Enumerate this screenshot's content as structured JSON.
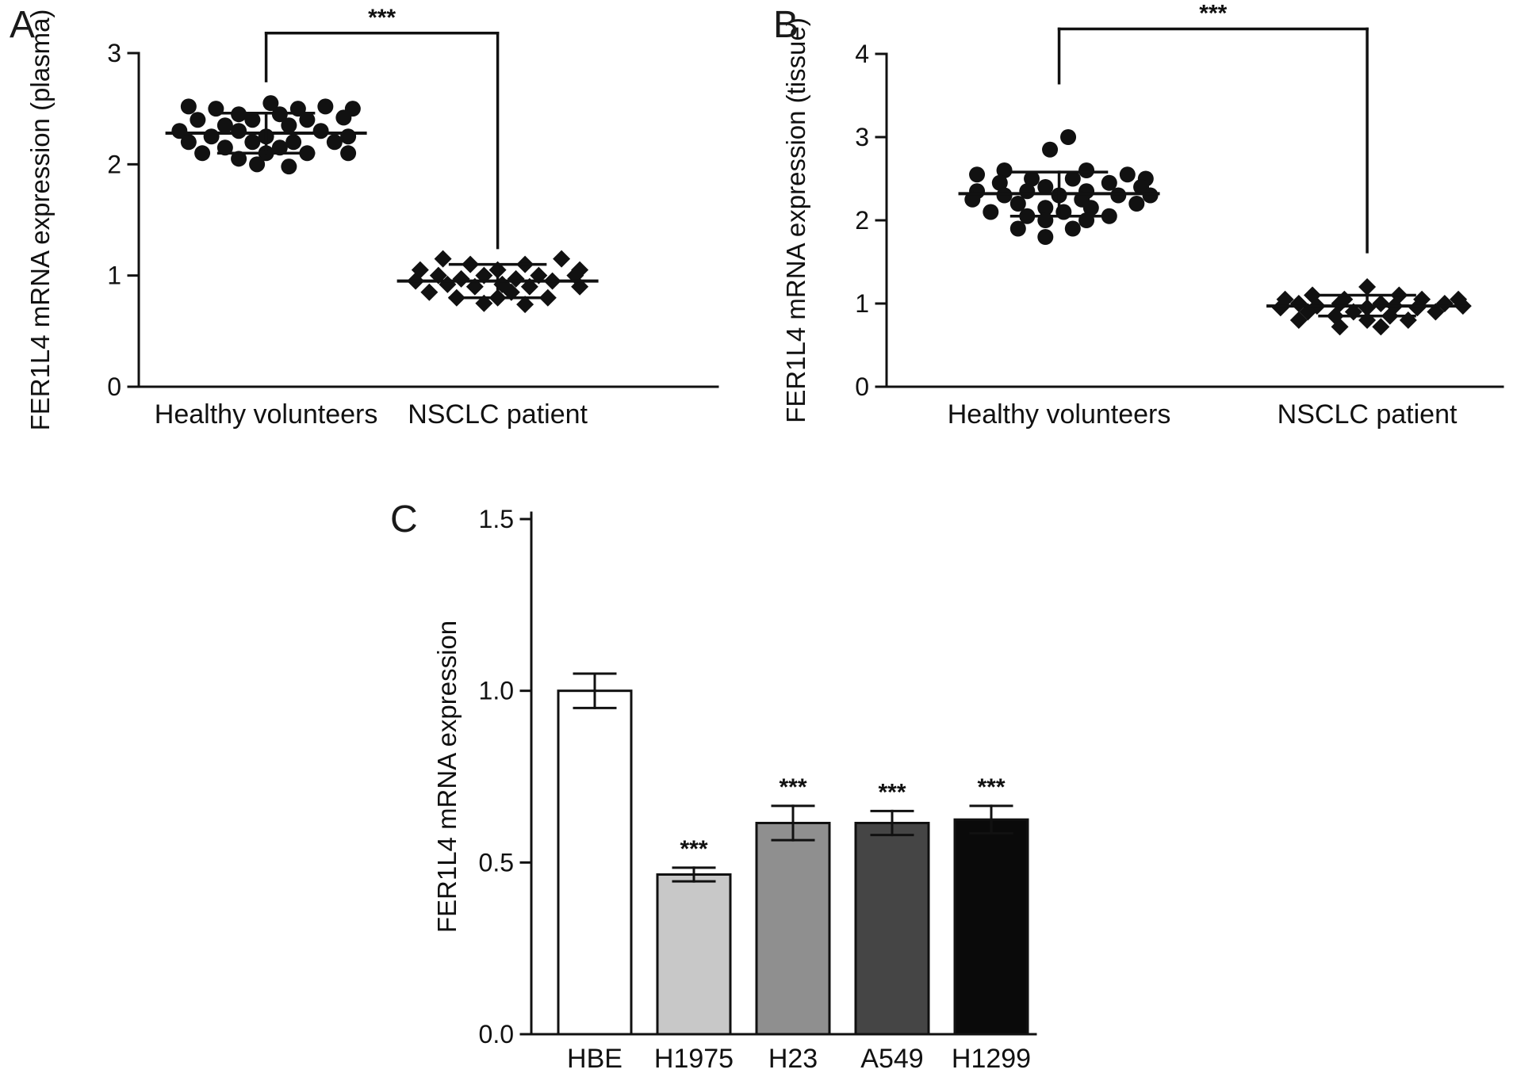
{
  "figure": {
    "background": "#ffffff",
    "ink_color": "#111111"
  },
  "panels": {
    "a": {
      "label": "A"
    },
    "b": {
      "label": "B"
    },
    "c": {
      "label": "C"
    }
  },
  "chart_data": [
    {
      "id": "a",
      "type": "scatter",
      "title": "",
      "xlabel": "",
      "ylabel": "FER1L4 mRNA expression (plasma)",
      "ylim": [
        0,
        3
      ],
      "yticks": [
        0,
        1,
        2,
        3
      ],
      "ytick_labels": [
        "0",
        "1",
        "2",
        "3"
      ],
      "categories": [
        "Healthy volunteers",
        "NSCLC patient"
      ],
      "significance": {
        "label": "***",
        "bar_y": 3.18,
        "left_drop_y": 2.75,
        "right_drop_y": 1.25
      },
      "groups": [
        {
          "name": "Healthy volunteers",
          "marker": "circle",
          "mean": 2.28,
          "err_low": 2.1,
          "err_high": 2.46,
          "points": [
            [
              -0.85,
              2.52
            ],
            [
              -0.55,
              2.5
            ],
            [
              0.05,
              2.55
            ],
            [
              0.35,
              2.5
            ],
            [
              0.65,
              2.52
            ],
            [
              0.95,
              2.5
            ],
            [
              -0.3,
              2.45
            ],
            [
              0.15,
              2.45
            ],
            [
              -0.75,
              2.4
            ],
            [
              -0.15,
              2.4
            ],
            [
              0.45,
              2.4
            ],
            [
              0.85,
              2.42
            ],
            [
              -0.45,
              2.35
            ],
            [
              0.25,
              2.35
            ],
            [
              -0.95,
              2.3
            ],
            [
              -0.3,
              2.3
            ],
            [
              0.6,
              2.3
            ],
            [
              -0.6,
              2.25
            ],
            [
              0.0,
              2.25
            ],
            [
              0.9,
              2.25
            ],
            [
              -0.85,
              2.2
            ],
            [
              -0.15,
              2.2
            ],
            [
              0.3,
              2.2
            ],
            [
              0.75,
              2.2
            ],
            [
              -0.45,
              2.15
            ],
            [
              0.15,
              2.15
            ],
            [
              -0.7,
              2.1
            ],
            [
              0.0,
              2.1
            ],
            [
              0.45,
              2.1
            ],
            [
              0.9,
              2.1
            ],
            [
              -0.3,
              2.05
            ],
            [
              -0.1,
              2.0
            ],
            [
              0.25,
              1.98
            ]
          ]
        },
        {
          "name": "NSCLC patient",
          "marker": "diamond",
          "mean": 0.95,
          "err_low": 0.8,
          "err_high": 1.1,
          "points": [
            [
              -0.6,
              1.15
            ],
            [
              0.7,
              1.15
            ],
            [
              -0.3,
              1.1
            ],
            [
              0.3,
              1.1
            ],
            [
              -0.85,
              1.05
            ],
            [
              0.0,
              1.05
            ],
            [
              0.9,
              1.05
            ],
            [
              -0.65,
              1.0
            ],
            [
              -0.15,
              1.0
            ],
            [
              0.45,
              1.0
            ],
            [
              0.85,
              1.0
            ],
            [
              -0.4,
              0.97
            ],
            [
              0.2,
              0.97
            ],
            [
              -0.9,
              0.95
            ],
            [
              0.6,
              0.95
            ],
            [
              -0.55,
              0.92
            ],
            [
              0.05,
              0.92
            ],
            [
              -0.25,
              0.9
            ],
            [
              0.35,
              0.9
            ],
            [
              0.9,
              0.9
            ],
            [
              -0.75,
              0.85
            ],
            [
              0.15,
              0.85
            ],
            [
              -0.45,
              0.8
            ],
            [
              0.0,
              0.8
            ],
            [
              0.55,
              0.8
            ],
            [
              -0.15,
              0.75
            ],
            [
              0.3,
              0.74
            ]
          ]
        }
      ]
    },
    {
      "id": "b",
      "type": "scatter",
      "title": "",
      "xlabel": "",
      "ylabel": "FER1L4 mRNA expression (tissue)",
      "ylim": [
        0,
        4
      ],
      "yticks": [
        0,
        1,
        2,
        3,
        4
      ],
      "ytick_labels": [
        "0",
        "1",
        "2",
        "3",
        "4"
      ],
      "categories": [
        "Healthy volunteers",
        "NSCLC patient"
      ],
      "significance": {
        "label": "***",
        "bar_y": 4.3,
        "left_drop_y": 3.65,
        "right_drop_y": 1.62
      },
      "groups": [
        {
          "name": "Healthy volunteers",
          "marker": "circle",
          "mean": 2.32,
          "err_low": 2.05,
          "err_high": 2.58,
          "points": [
            [
              0.1,
              3.0
            ],
            [
              -0.1,
              2.85
            ],
            [
              -0.6,
              2.6
            ],
            [
              0.3,
              2.6
            ],
            [
              -0.9,
              2.55
            ],
            [
              0.75,
              2.55
            ],
            [
              -0.3,
              2.5
            ],
            [
              0.15,
              2.5
            ],
            [
              0.95,
              2.5
            ],
            [
              -0.65,
              2.45
            ],
            [
              0.55,
              2.45
            ],
            [
              -0.15,
              2.4
            ],
            [
              0.9,
              2.4
            ],
            [
              -0.9,
              2.35
            ],
            [
              -0.35,
              2.35
            ],
            [
              0.3,
              2.35
            ],
            [
              -0.6,
              2.3
            ],
            [
              0.0,
              2.3
            ],
            [
              0.65,
              2.3
            ],
            [
              1.0,
              2.3
            ],
            [
              -0.95,
              2.25
            ],
            [
              0.25,
              2.25
            ],
            [
              -0.45,
              2.2
            ],
            [
              0.85,
              2.2
            ],
            [
              -0.15,
              2.15
            ],
            [
              0.35,
              2.15
            ],
            [
              -0.75,
              2.1
            ],
            [
              0.05,
              2.1
            ],
            [
              -0.35,
              2.05
            ],
            [
              0.55,
              2.05
            ],
            [
              -0.15,
              2.0
            ],
            [
              0.3,
              2.0
            ],
            [
              -0.45,
              1.9
            ],
            [
              0.15,
              1.9
            ],
            [
              -0.15,
              1.8
            ]
          ]
        },
        {
          "name": "NSCLC patient",
          "marker": "diamond",
          "mean": 0.97,
          "err_low": 0.85,
          "err_high": 1.1,
          "points": [
            [
              0.0,
              1.2
            ],
            [
              -0.6,
              1.1
            ],
            [
              0.35,
              1.1
            ],
            [
              -0.9,
              1.05
            ],
            [
              -0.25,
              1.05
            ],
            [
              0.6,
              1.05
            ],
            [
              1.0,
              1.05
            ],
            [
              -0.75,
              1.0
            ],
            [
              -0.3,
              1.0
            ],
            [
              0.15,
              1.0
            ],
            [
              0.85,
              1.0
            ],
            [
              -0.55,
              0.97
            ],
            [
              0.3,
              0.97
            ],
            [
              1.05,
              0.97
            ],
            [
              -0.95,
              0.95
            ],
            [
              0.0,
              0.95
            ],
            [
              0.55,
              0.95
            ],
            [
              -0.65,
              0.9
            ],
            [
              -0.15,
              0.9
            ],
            [
              0.75,
              0.9
            ],
            [
              -0.35,
              0.85
            ],
            [
              0.25,
              0.85
            ],
            [
              -0.75,
              0.8
            ],
            [
              0.0,
              0.8
            ],
            [
              0.45,
              0.8
            ],
            [
              -0.3,
              0.72
            ],
            [
              0.15,
              0.72
            ]
          ]
        }
      ]
    },
    {
      "id": "c",
      "type": "bar",
      "title": "",
      "xlabel": "",
      "ylabel": "FER1L4 mRNA expression",
      "ylim": [
        0,
        1.5
      ],
      "yticks": [
        0,
        0.5,
        1.0,
        1.5
      ],
      "ytick_labels": [
        "0.0",
        "0.5",
        "1.0",
        "1.5"
      ],
      "categories": [
        "HBE",
        "H1975",
        "H23",
        "A549",
        "H1299"
      ],
      "values": [
        1.0,
        0.465,
        0.615,
        0.615,
        0.625
      ],
      "errors": [
        0.05,
        0.02,
        0.05,
        0.035,
        0.04
      ],
      "bar_colors": [
        "#ffffff",
        "#c8c8c8",
        "#8f8f8f",
        "#454545",
        "#0a0a0a"
      ],
      "significance": [
        "",
        "***",
        "***",
        "***",
        "***"
      ]
    }
  ]
}
